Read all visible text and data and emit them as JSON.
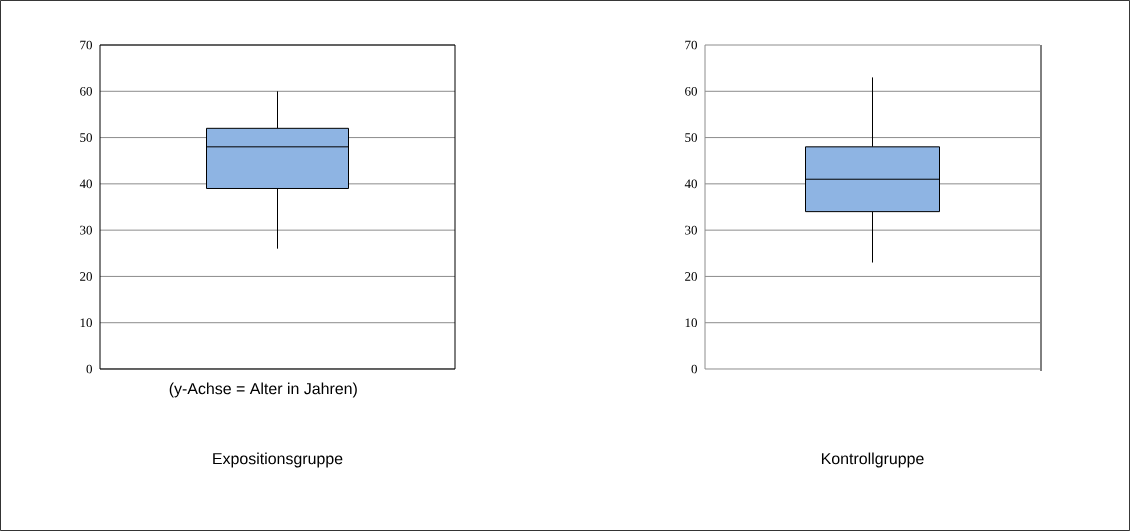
{
  "chart_data": [
    {
      "type": "box",
      "categories": [
        null
      ],
      "color": "#8eb4e3",
      "boxes": [
        {
          "low": 26,
          "q1": 39,
          "median": 48,
          "q3": 52,
          "high": 60
        }
      ],
      "ylim": [
        0,
        70
      ],
      "yticks": [
        0,
        10,
        20,
        30,
        40,
        50,
        60,
        70
      ],
      "grid": "y",
      "xlabel": "Expositionsgruppe",
      "annotations": [
        "(y-Achse = Alter in Jahren)"
      ]
    },
    {
      "type": "box",
      "categories": [
        null
      ],
      "color": "#8eb4e3",
      "boxes": [
        {
          "low": 23,
          "q1": 34,
          "median": 41,
          "q3": 48,
          "high": 63
        }
      ],
      "ylim": [
        0,
        70
      ],
      "yticks": [
        0,
        10,
        20,
        30,
        40,
        50,
        60,
        70
      ],
      "grid": "y",
      "xlabel": "Kontrollgruppe"
    }
  ]
}
